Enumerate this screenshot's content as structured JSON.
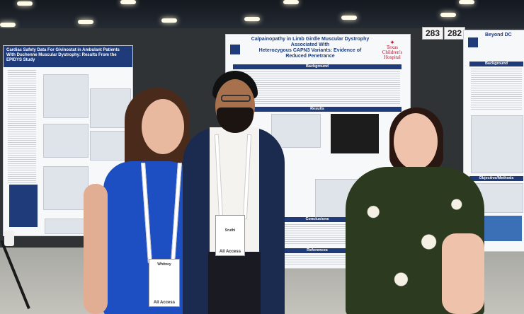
{
  "center_poster": {
    "title": "Calpainopathy in Limb Girdle Muscular Dystrophy Associated With\nHeterozygous CAPN3 Variants: Evidence of Reduced Penetrance",
    "sections": [
      "Background",
      "Results",
      "Conclusions",
      "References"
    ],
    "logo_text": "Texas Children's Hospital"
  },
  "left_poster": {
    "title": "Cardiac Safety Data For Givinostat in Ambulant Patients With Duchenne Muscular Dystrophy: Results From the EPIDYS Study"
  },
  "right_poster": {
    "title": "Beyond DC",
    "sections": [
      "Background",
      "Objective/Methods"
    ]
  },
  "booth_numbers": [
    "283",
    "282"
  ],
  "badges": [
    {
      "name": "Whitney",
      "access": "All Access"
    },
    {
      "name": "Sruthi",
      "access": "All Access"
    }
  ]
}
